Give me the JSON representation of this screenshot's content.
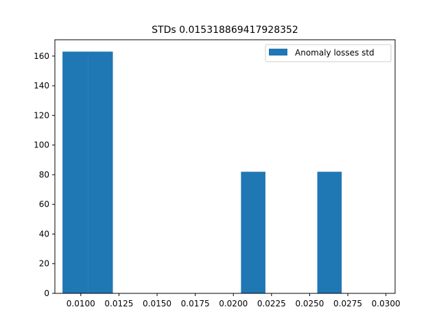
{
  "chart_data": {
    "type": "bar",
    "title": "STDs 0.015318869417928352",
    "xlabel": "",
    "ylabel": "",
    "xlim": [
      0.0083,
      0.0306
    ],
    "ylim": [
      0,
      171
    ],
    "x_ticks": [
      0.01,
      0.0125,
      0.015,
      0.0175,
      0.02,
      0.0225,
      0.025,
      0.0275,
      0.03
    ],
    "x_tick_labels": [
      "0.0100",
      "0.0125",
      "0.0150",
      "0.0175",
      "0.0200",
      "0.0225",
      "0.0250",
      "0.0275",
      "0.0300"
    ],
    "y_ticks": [
      0,
      20,
      40,
      60,
      80,
      100,
      120,
      140,
      160
    ],
    "y_tick_labels": [
      "0",
      "20",
      "40",
      "60",
      "80",
      "100",
      "120",
      "140",
      "160"
    ],
    "bars": [
      {
        "x_start": 0.0088,
        "x_end": 0.0105,
        "value": 163
      },
      {
        "x_start": 0.0105,
        "x_end": 0.0121,
        "value": 163
      },
      {
        "x_start": 0.0121,
        "x_end": 0.0138,
        "value": 0
      },
      {
        "x_start": 0.0138,
        "x_end": 0.0155,
        "value": 0
      },
      {
        "x_start": 0.0155,
        "x_end": 0.0171,
        "value": 0
      },
      {
        "x_start": 0.0171,
        "x_end": 0.0188,
        "value": 0
      },
      {
        "x_start": 0.0188,
        "x_end": 0.0205,
        "value": 0
      },
      {
        "x_start": 0.0205,
        "x_end": 0.0221,
        "value": 82
      },
      {
        "x_start": 0.0221,
        "x_end": 0.0238,
        "value": 0
      },
      {
        "x_start": 0.0238,
        "x_end": 0.0255,
        "value": 0
      },
      {
        "x_start": 0.0255,
        "x_end": 0.0271,
        "value": 82
      },
      {
        "x_start": 0.0271,
        "x_end": 0.0288,
        "value": 0
      }
    ],
    "series": [
      {
        "name": "Anomaly losses std",
        "color": "#1f77b4"
      }
    ],
    "legend": {
      "position": "top-right"
    },
    "grid": false
  }
}
